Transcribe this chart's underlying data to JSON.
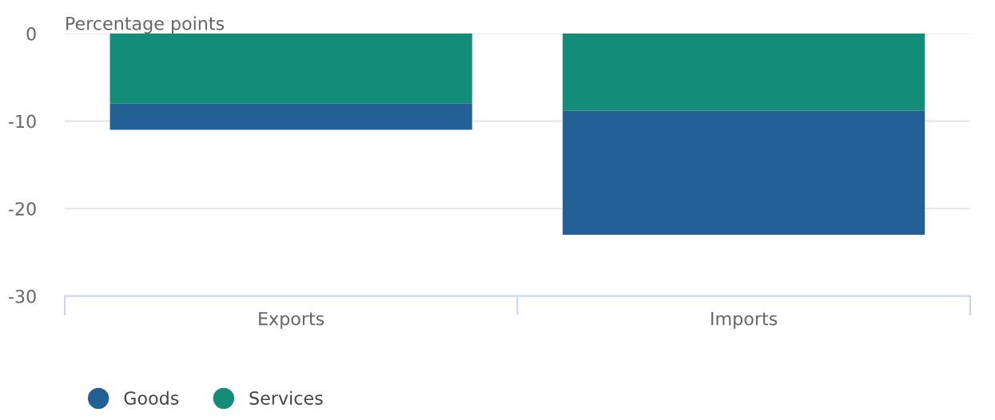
{
  "chart_data": {
    "type": "bar",
    "stacked": true,
    "ylabel": "Percentage points",
    "categories": [
      "Exports",
      "Imports"
    ],
    "series": [
      {
        "name": "Services",
        "color": "#138d78",
        "values": [
          -8.0,
          -8.8
        ]
      },
      {
        "name": "Goods",
        "color": "#226096",
        "values": [
          -3.0,
          -14.2
        ]
      }
    ],
    "ylim": [
      -30,
      0
    ],
    "yticks": [
      -30,
      -20,
      -10,
      0
    ],
    "grid": "y",
    "legend": "bottom left"
  }
}
